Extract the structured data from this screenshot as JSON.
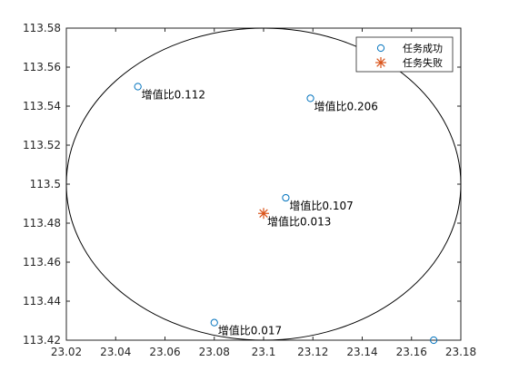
{
  "chart_data": {
    "type": "scatter",
    "xlim": [
      23.02,
      23.18
    ],
    "ylim": [
      113.42,
      113.58
    ],
    "x_ticks": [
      "23.02",
      "23.04",
      "23.06",
      "23.08",
      "23.1",
      "23.12",
      "23.14",
      "23.16",
      "23.18"
    ],
    "y_ticks": [
      "113.42",
      "113.44",
      "113.46",
      "113.48",
      "113.5",
      "113.52",
      "113.54",
      "113.56",
      "113.58"
    ],
    "grid": false,
    "legend_position": "top-right",
    "series": [
      {
        "name": "任务成功",
        "marker": "circle",
        "color": "#0072bd",
        "points": [
          {
            "x": 23.049,
            "y": 113.55,
            "label": "增值比0.112"
          },
          {
            "x": 23.119,
            "y": 113.544,
            "label": "增值比0.206"
          },
          {
            "x": 23.109,
            "y": 113.493,
            "label": "增值比0.107"
          },
          {
            "x": 23.08,
            "y": 113.429,
            "label": "增值比0.017"
          },
          {
            "x": 23.169,
            "y": 113.42,
            "label": ""
          }
        ]
      },
      {
        "name": "任务失败",
        "marker": "asterisk",
        "color": "#d95319",
        "points": [
          {
            "x": 23.1,
            "y": 113.485,
            "label": "增值比0.013"
          }
        ]
      }
    ],
    "boundary_ellipse": {
      "cx": 23.1,
      "cy": 113.5,
      "rx": 0.08,
      "ry": 0.08
    }
  }
}
